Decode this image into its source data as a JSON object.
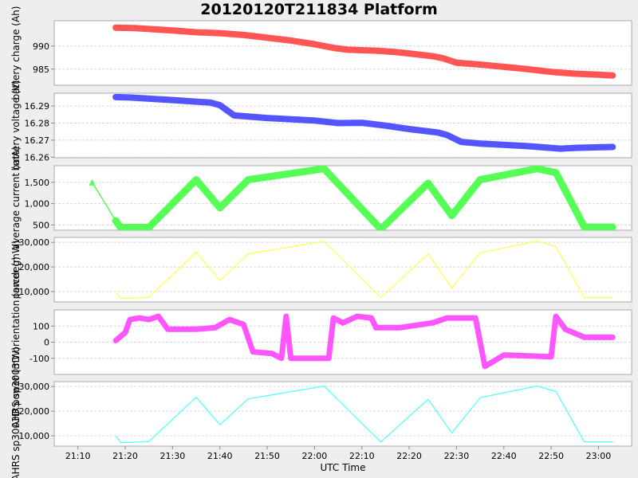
{
  "title": "20120120T211834 Platform",
  "colors": {
    "background": "#eeeeee",
    "plot_bg": "#ffffff",
    "border": "#aaaaaa",
    "grid": "#d8d8d8",
    "battery_charge": "#ff5555",
    "battery_voltage": "#5555ff",
    "average_current": "#55ff55",
    "power": "#ffff55",
    "orientation": "#ff55ff",
    "ahrs_power": "#55ffff"
  },
  "chart_data": {
    "type": "line",
    "title": "20120120T211834 Platform",
    "xlabel": "UTC Time",
    "x_ticks": [
      "21:10",
      "21:20",
      "21:30",
      "21:40",
      "21:50",
      "22:00",
      "22:10",
      "22:20",
      "22:30",
      "22:40",
      "22:50",
      "23:00"
    ],
    "x_range": [
      "21:05",
      "23:07"
    ],
    "panels": [
      {
        "name": "battery charge",
        "ylabel": "battery charge (Ah)",
        "ylim": [
          981.5,
          995.5
        ],
        "yticks": [
          985,
          990
        ],
        "ytick_labels": [
          "985",
          "990"
        ],
        "style": "thick",
        "x": [
          "21:18",
          "21:22",
          "21:30",
          "21:35",
          "21:40",
          "21:45",
          "21:50",
          "21:55",
          "22:00",
          "22:04",
          "22:07",
          "22:13",
          "22:17",
          "22:20",
          "22:25",
          "22:27",
          "22:30",
          "22:35",
          "22:39",
          "22:45",
          "22:50",
          "22:55",
          "23:00",
          "23:03"
        ],
        "values": [
          994.0,
          993.9,
          993.4,
          993.0,
          992.8,
          992.4,
          991.8,
          991.2,
          990.4,
          989.6,
          989.2,
          989.0,
          988.7,
          988.4,
          987.8,
          987.4,
          986.4,
          986.0,
          985.6,
          985.0,
          984.4,
          984.0,
          983.8,
          983.6
        ]
      },
      {
        "name": "battery voltage",
        "ylabel": "battery voltage (V)",
        "ylim": [
          16.2597,
          16.2975
        ],
        "yticks": [
          16.26,
          16.27,
          16.28,
          16.29
        ],
        "ytick_labels": [
          "16.26",
          "16.27",
          "16.28",
          "16.29"
        ],
        "style": "thick",
        "x": [
          "21:18",
          "21:21",
          "21:30",
          "21:38",
          "21:40",
          "21:43",
          "21:50",
          "22:00",
          "22:05",
          "22:10",
          "22:15",
          "22:20",
          "22:26",
          "22:28",
          "22:31",
          "22:35",
          "22:45",
          "22:52",
          "22:55",
          "23:00",
          "23:03"
        ],
        "values": [
          16.2952,
          16.295,
          16.2935,
          16.292,
          16.2905,
          16.2845,
          16.283,
          16.2815,
          16.28,
          16.2802,
          16.2785,
          16.2765,
          16.2745,
          16.273,
          16.269,
          16.268,
          16.2665,
          16.265,
          16.2655,
          16.2658,
          16.266
        ]
      },
      {
        "name": "average current",
        "ylabel": "average current (mA)",
        "ylim": [
          375,
          1890
        ],
        "yticks": [
          500,
          1000,
          1500
        ],
        "ytick_labels": [
          "500",
          "1,000",
          "1,500"
        ],
        "style": "thick",
        "x": [
          "21:13",
          "21:18",
          "21:19",
          "21:25",
          "21:35",
          "21:40",
          "21:46",
          "22:02",
          "22:14",
          "22:24",
          "22:29",
          "22:35",
          "22:47",
          "22:51",
          "22:57",
          "23:03"
        ],
        "values": [
          1500,
          600,
          440,
          440,
          1560,
          900,
          1560,
          1820,
          400,
          1480,
          720,
          1560,
          1820,
          1730,
          450,
          450
        ]
      },
      {
        "name": "power",
        "ylabel": "power (mW)",
        "ylim": [
          5800,
          32000
        ],
        "yticks": [
          10000,
          20000,
          30000
        ],
        "ytick_labels": [
          "10,000",
          "20,000",
          "30,000"
        ],
        "style": "thin",
        "x": [
          "21:18",
          "21:19",
          "21:21",
          "21:25",
          "21:35",
          "21:40",
          "21:46",
          "22:02",
          "22:14",
          "22:24",
          "22:29",
          "22:35",
          "22:47",
          "22:51",
          "22:57",
          "23:03"
        ],
        "values": [
          10000,
          7300,
          7300,
          7700,
          26000,
          14500,
          25300,
          30400,
          7500,
          25300,
          11500,
          25800,
          30400,
          28300,
          7500,
          7500
        ]
      },
      {
        "name": "AHRS sp3003D orientation",
        "ylabel": "AHRS sp3003D.orientation (arcdeg)",
        "ylim": [
          -200,
          200
        ],
        "yticks": [
          -100,
          0,
          100
        ],
        "ytick_labels": [
          "-100",
          "0",
          "100"
        ],
        "style": "markers",
        "x": [
          "21:18",
          "21:20",
          "21:21",
          "21:23",
          "21:25",
          "21:27",
          "21:29",
          "21:35",
          "21:39",
          "21:42",
          "21:44",
          "21:45",
          "21:47",
          "21:51",
          "21:53",
          "21:54",
          "21:55",
          "22:03",
          "22:04",
          "22:06",
          "22:09",
          "22:12",
          "22:13",
          "22:18",
          "22:25",
          "22:28",
          "22:34",
          "22:36",
          "22:40",
          "22:50",
          "22:51",
          "22:53",
          "22:57",
          "23:00",
          "23:03"
        ],
        "values": [
          10,
          60,
          140,
          150,
          140,
          160,
          80,
          80,
          90,
          140,
          120,
          110,
          -60,
          -70,
          -100,
          160,
          -100,
          -100,
          150,
          120,
          160,
          150,
          90,
          90,
          120,
          150,
          150,
          -150,
          -80,
          -90,
          160,
          80,
          30,
          30,
          30
        ]
      },
      {
        "name": "AHRS sp3003D power",
        "ylabel": "AHRS sp3003D power (mW)",
        "ylim": [
          5800,
          32000
        ],
        "yticks": [
          10000,
          20000,
          30000
        ],
        "ytick_labels": [
          "10,000",
          "20,000",
          "30,000"
        ],
        "style": "thin",
        "x": [
          "21:18",
          "21:19",
          "21:21",
          "21:25",
          "21:35",
          "21:40",
          "21:46",
          "22:02",
          "22:14",
          "22:24",
          "22:29",
          "22:35",
          "22:47",
          "22:51",
          "22:57",
          "23:03"
        ],
        "values": [
          10000,
          7300,
          7300,
          7700,
          25700,
          14500,
          25000,
          30200,
          7500,
          24800,
          11200,
          25500,
          30200,
          28000,
          7500,
          7500
        ]
      }
    ]
  }
}
